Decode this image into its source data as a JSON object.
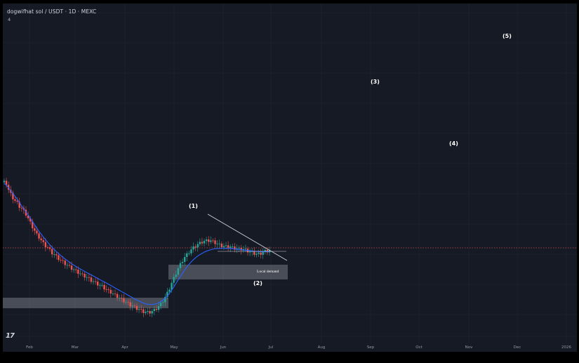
{
  "header": {
    "symbol_line": "dogwifhat sol / USDT · 1D · MEXC",
    "sub_value": "4"
  },
  "logo_text": "17",
  "colors": {
    "background": "#161a25",
    "grid": "#222633",
    "candle_up": "#26a69a",
    "candle_down": "#ef5350",
    "ma_line": "#2962ff",
    "trendline": "#d1d4dc",
    "zone_fill": "#b2b5be",
    "price_line": "#ef5350",
    "label_text": "#ffffff"
  },
  "chart_data": {
    "type": "candlestick",
    "title": "dogwifhat sol / USDT · 1D · MEXC",
    "x_ticks": [
      "Feb",
      "Mar",
      "Apr",
      "May",
      "Jun",
      "Jul",
      "Aug",
      "Sep",
      "Oct",
      "Nov",
      "Dec",
      "2026"
    ],
    "y_range_relative": [
      0,
      100
    ],
    "grid": true,
    "price_series_relative": [
      57.8,
      57.2,
      54.5,
      52.9,
      51.3,
      50.0,
      49.2,
      47.8,
      47.0,
      45.9,
      44.6,
      42.8,
      41.1,
      39.4,
      37.7,
      36.2,
      35.2,
      33.8,
      32.6,
      31.6,
      30.9,
      29.8,
      28.7,
      28.0,
      27.2,
      26.4,
      25.6,
      25.0,
      24.3,
      23.6,
      23.0,
      22.4,
      21.8,
      21.3,
      20.7,
      20.1,
      19.6,
      19.2,
      18.6,
      18.1,
      17.4,
      16.9,
      16.4,
      15.9,
      15.4,
      15.0,
      14.3,
      13.6,
      13.0,
      12.6,
      11.9,
      11.3,
      10.8,
      10.2,
      9.6,
      9.0,
      8.4,
      7.9,
      7.3,
      6.9,
      6.4,
      5.9,
      5.5,
      5.0,
      4.6,
      4.4,
      4.3,
      4.4,
      4.7,
      5.2,
      5.9,
      6.7,
      7.7,
      9.0,
      10.5,
      12.2,
      14.2,
      16.3,
      18.3,
      20.3,
      22.3,
      24.0,
      25.6,
      26.9,
      28.0,
      29.1,
      30.0,
      30.8,
      31.5,
      32.2,
      32.7,
      33.2,
      33.5,
      33.7,
      33.8,
      33.7,
      33.3,
      32.9,
      32.4,
      32.0,
      31.6,
      31.4,
      31.3,
      31.4,
      31.2,
      30.8,
      30.6,
      30.4,
      30.3,
      30.3,
      30.1,
      29.9,
      29.5,
      29.1,
      28.9,
      28.5,
      28.2,
      28.3,
      28.5,
      28.9,
      29.4,
      29.5,
      29.7
    ],
    "ma_series_relative": [
      57.3,
      56.6,
      55.5,
      54.2,
      53.2,
      52.0,
      50.8,
      49.5,
      48.1,
      46.9,
      45.6,
      44.4,
      43.0,
      41.6,
      40.3,
      38.9,
      37.6,
      36.5,
      35.3,
      34.2,
      33.1,
      32.1,
      31.1,
      30.2,
      29.3,
      28.5,
      27.7,
      27.0,
      26.3,
      25.6,
      25.0,
      24.3,
      23.8,
      23.2,
      22.7,
      22.2,
      21.7,
      21.2,
      20.7,
      20.2,
      19.8,
      19.3,
      18.8,
      18.3,
      17.8,
      17.3,
      16.9,
      16.4,
      15.9,
      15.4,
      14.9,
      14.4,
      13.9,
      13.4,
      12.9,
      12.4,
      11.9,
      11.4,
      10.9,
      10.4,
      9.9,
      9.4,
      9.0,
      8.6,
      8.2,
      7.9,
      7.7,
      7.6,
      7.6,
      7.7,
      7.9,
      8.3,
      8.8,
      9.4,
      10.2,
      11.1,
      12.2,
      13.5,
      14.8,
      16.3,
      17.7,
      19.1,
      20.5,
      21.8,
      23.0,
      24.1,
      25.1,
      26.0,
      26.8,
      27.5,
      28.1,
      28.6,
      29.1,
      29.5,
      29.8,
      30.1,
      30.3,
      30.5,
      30.6,
      30.6,
      30.7,
      30.7,
      30.6,
      30.6,
      30.6,
      30.5,
      30.4,
      30.3,
      30.2,
      30.1,
      30.0,
      29.9,
      29.8,
      29.7,
      29.6,
      29.5,
      29.4,
      29.3,
      29.3,
      29.3,
      29.3,
      29.3,
      29.3
    ],
    "wave_labels": [
      "(1)",
      "(2)",
      "(3)",
      "(4)",
      "(5)"
    ],
    "zone_labels": [
      "Local demand"
    ]
  }
}
